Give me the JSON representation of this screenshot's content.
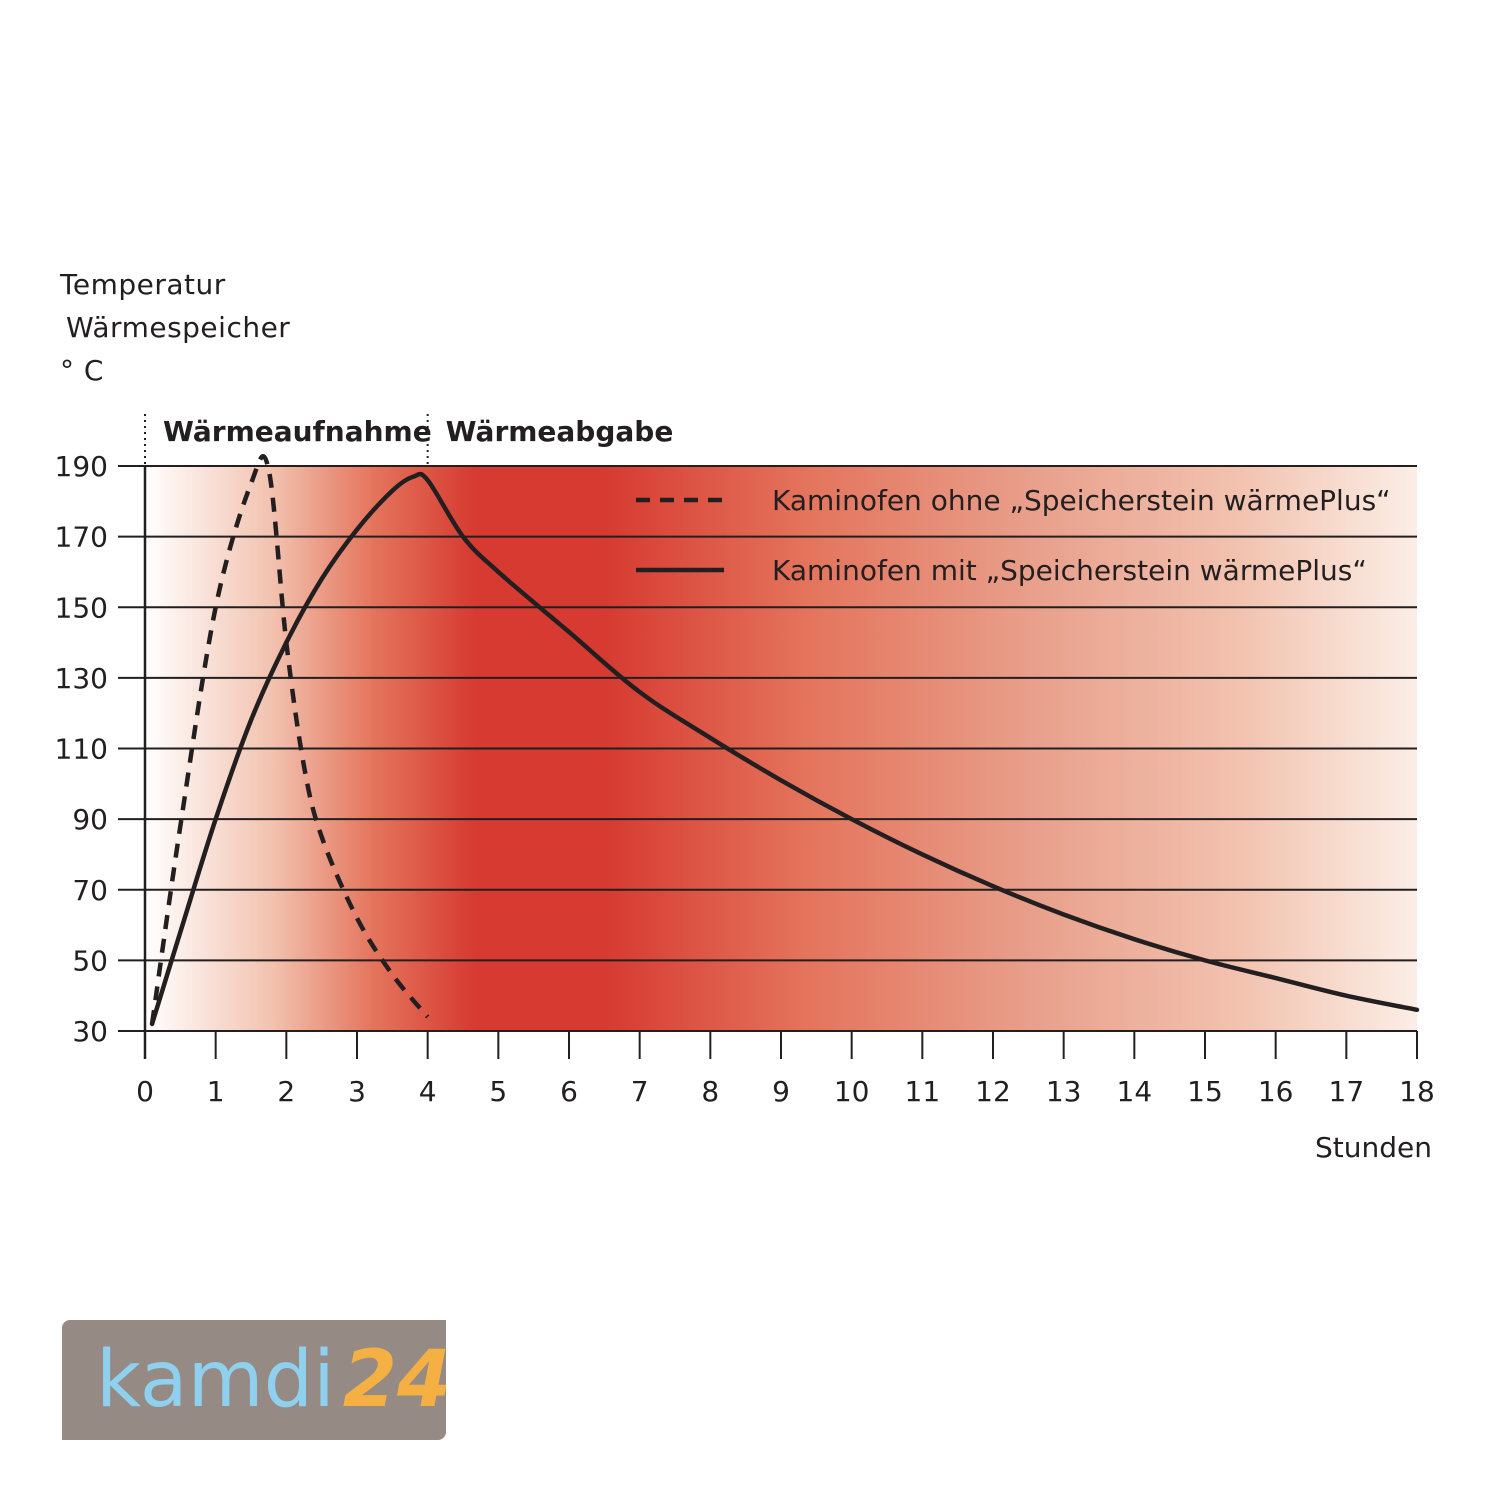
{
  "chart_data": {
    "type": "line",
    "ylabel": [
      "Temperatur",
      "Wärmespeicher",
      "° C"
    ],
    "xlabel": "Stunden",
    "xlim": [
      0,
      18
    ],
    "ylim": [
      30,
      190
    ],
    "x_ticks": [
      0,
      1,
      2,
      3,
      4,
      5,
      6,
      7,
      8,
      9,
      10,
      11,
      12,
      13,
      14,
      15,
      16,
      17,
      18
    ],
    "y_ticks": [
      30,
      50,
      70,
      90,
      110,
      130,
      150,
      170,
      190
    ],
    "grid": "horizontal",
    "legend_position": "top-right",
    "phases": [
      {
        "label": "Wärmeaufnahme",
        "start": 0,
        "end": 4
      },
      {
        "label": "Wärmeabgabe",
        "start": 4,
        "end": 18
      }
    ],
    "series": [
      {
        "name": "Kaminofen ohne „Speicherstein wärmePlus“",
        "style": "dashed",
        "x": [
          0.1,
          0.5,
          1.0,
          1.5,
          1.75,
          2.0,
          2.25,
          2.5,
          3.0,
          3.5,
          4.0
        ],
        "y": [
          32,
          88,
          150,
          185,
          189,
          140,
          105,
          85,
          62,
          46,
          34
        ]
      },
      {
        "name": "Kaminofen mit „Speicherstein wärmePlus“",
        "style": "solid",
        "x": [
          0.1,
          0.5,
          1.0,
          1.5,
          2.0,
          2.5,
          3.0,
          3.5,
          3.8,
          4.0,
          4.5,
          5.0,
          6.0,
          7.0,
          8.0,
          9.0,
          10.0,
          11.0,
          12.0,
          13.0,
          14.0,
          15.0,
          16.0,
          17.0,
          18.0
        ],
        "y": [
          32,
          58,
          90,
          118,
          140,
          158,
          172,
          183,
          187,
          186,
          170,
          160,
          143,
          126,
          113,
          101,
          90,
          80,
          71,
          63,
          56,
          50,
          45,
          40,
          36
        ]
      }
    ]
  },
  "colors": {
    "ink": "#231f20",
    "peak_red": "#d63a30",
    "mid_red": "#e4745c",
    "light_red": "#f2c2af",
    "fade": "#fbeee6"
  },
  "logo": {
    "part1": "kamdi",
    "part2": "24",
    "bg": "#958a84",
    "color1": "#8fd0ee",
    "color2": "#f4b043"
  }
}
